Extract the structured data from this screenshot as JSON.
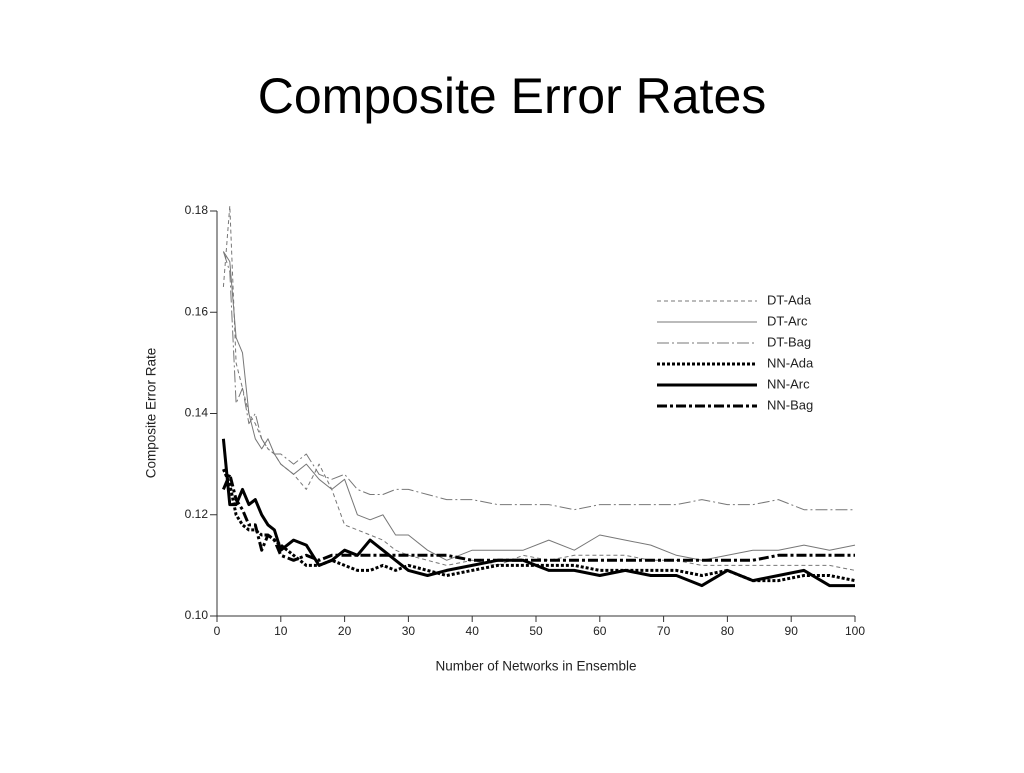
{
  "chart_data": {
    "type": "line",
    "title": "Composite Error Rates",
    "x_label": "Number of Networks in Ensemble",
    "y_label": "Composite Error Rate",
    "x": [
      1,
      2,
      3,
      4,
      5,
      6,
      7,
      8,
      9,
      10,
      12,
      14,
      16,
      18,
      20,
      22,
      24,
      26,
      28,
      30,
      33,
      36,
      40,
      44,
      48,
      52,
      56,
      60,
      64,
      68,
      72,
      76,
      80,
      84,
      88,
      92,
      96,
      100
    ],
    "xlim": [
      0,
      100
    ],
    "xticks": [
      0,
      10,
      20,
      30,
      40,
      50,
      60,
      70,
      80,
      90,
      100
    ],
    "ylim": [
      0.1,
      0.18
    ],
    "yticks": [
      {
        "value": 0.1,
        "label": "0.10"
      },
      0.12,
      0.14,
      0.16,
      0.18
    ],
    "grid": false,
    "legend": "upper right",
    "series": [
      {
        "name": "DT-Ada",
        "color": "#777777",
        "values": [
          0.165,
          0.181,
          0.15,
          0.145,
          0.14,
          0.138,
          0.135,
          0.133,
          0.132,
          0.13,
          0.128,
          0.125,
          0.13,
          0.125,
          0.118,
          0.117,
          0.116,
          0.115,
          0.113,
          0.112,
          0.111,
          0.11,
          0.111,
          0.11,
          0.112,
          0.111,
          0.112,
          0.112,
          0.112,
          0.111,
          0.111,
          0.11,
          0.11,
          0.11,
          0.11,
          0.11,
          0.11,
          0.109
        ]
      },
      {
        "name": "DT-Arc",
        "color": "#777777",
        "values": [
          0.172,
          0.17,
          0.155,
          0.152,
          0.14,
          0.135,
          0.133,
          0.135,
          0.132,
          0.13,
          0.128,
          0.13,
          0.127,
          0.125,
          0.127,
          0.12,
          0.119,
          0.12,
          0.116,
          0.116,
          0.113,
          0.111,
          0.113,
          0.113,
          0.113,
          0.115,
          0.113,
          0.116,
          0.115,
          0.114,
          0.112,
          0.111,
          0.112,
          0.113,
          0.113,
          0.114,
          0.113,
          0.114
        ]
      },
      {
        "name": "DT-Bag",
        "color": "#777777",
        "values": [
          0.172,
          0.168,
          0.142,
          0.145,
          0.138,
          0.14,
          0.135,
          0.133,
          0.132,
          0.132,
          0.13,
          0.132,
          0.128,
          0.127,
          0.128,
          0.125,
          0.124,
          0.124,
          0.125,
          0.125,
          0.124,
          0.123,
          0.123,
          0.122,
          0.122,
          0.122,
          0.121,
          0.122,
          0.122,
          0.122,
          0.122,
          0.123,
          0.122,
          0.122,
          0.123,
          0.121,
          0.121,
          0.121
        ]
      },
      {
        "name": "NN-Ada",
        "color": "#000000",
        "values": [
          0.129,
          0.126,
          0.12,
          0.118,
          0.117,
          0.117,
          0.116,
          0.116,
          0.115,
          0.114,
          0.112,
          0.11,
          0.11,
          0.111,
          0.11,
          0.109,
          0.109,
          0.11,
          0.109,
          0.11,
          0.109,
          0.108,
          0.109,
          0.11,
          0.11,
          0.11,
          0.11,
          0.109,
          0.109,
          0.109,
          0.109,
          0.108,
          0.109,
          0.107,
          0.107,
          0.108,
          0.108,
          0.107
        ]
      },
      {
        "name": "NN-Arc",
        "color": "#000000",
        "values": [
          0.135,
          0.122,
          0.122,
          0.125,
          0.122,
          0.123,
          0.12,
          0.118,
          0.117,
          0.113,
          0.115,
          0.114,
          0.11,
          0.111,
          0.113,
          0.112,
          0.115,
          0.113,
          0.111,
          0.109,
          0.108,
          0.109,
          0.11,
          0.111,
          0.111,
          0.109,
          0.109,
          0.108,
          0.109,
          0.108,
          0.108,
          0.106,
          0.109,
          0.107,
          0.108,
          0.109,
          0.106,
          0.106
        ]
      },
      {
        "name": "NN-Bag",
        "color": "#000000",
        "values": [
          0.125,
          0.128,
          0.123,
          0.121,
          0.118,
          0.118,
          0.113,
          0.116,
          0.115,
          0.112,
          0.111,
          0.112,
          0.111,
          0.112,
          0.112,
          0.112,
          0.112,
          0.112,
          0.112,
          0.112,
          0.112,
          0.112,
          0.111,
          0.111,
          0.111,
          0.111,
          0.111,
          0.111,
          0.111,
          0.111,
          0.111,
          0.111,
          0.111,
          0.111,
          0.112,
          0.112,
          0.112,
          0.112
        ]
      }
    ]
  }
}
